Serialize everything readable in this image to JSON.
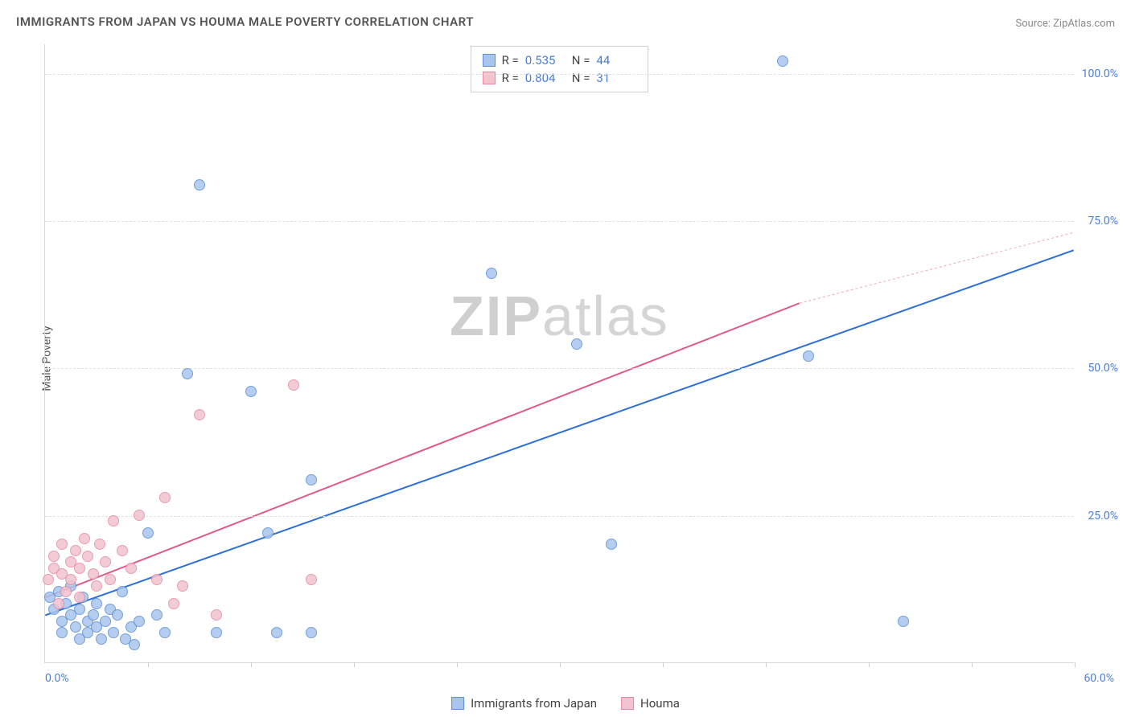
{
  "title": "IMMIGRANTS FROM JAPAN VS HOUMA MALE POVERTY CORRELATION CHART",
  "source": "Source: ZipAtlas.com",
  "watermark_zip": "ZIP",
  "watermark_atlas": "atlas",
  "y_axis_label": "Male Poverty",
  "chart": {
    "type": "scatter",
    "xlim": [
      0,
      60
    ],
    "ylim": [
      0,
      105
    ],
    "x_min_label": "0.0%",
    "x_max_label": "60.0%",
    "y_ticks": [
      25,
      50,
      75,
      100
    ],
    "y_tick_labels": [
      "25.0%",
      "50.0%",
      "75.0%",
      "100.0%"
    ],
    "x_tick_positions": [
      6,
      12,
      18,
      24,
      30,
      36,
      42,
      48,
      54,
      60
    ],
    "grid_color": "#e0e0e0",
    "background_color": "#ffffff",
    "point_radius": 7,
    "series": [
      {
        "name": "Immigrants from Japan",
        "fill_color": "#a9c5ec",
        "stroke_color": "#5b8fd6",
        "R": "0.535",
        "N": "44",
        "trend": {
          "x1": 0,
          "y1": 8,
          "x2": 60,
          "y2": 70,
          "color": "#2e6fd6",
          "width": 2
        },
        "points": [
          [
            0.3,
            11
          ],
          [
            0.5,
            9
          ],
          [
            0.8,
            12
          ],
          [
            1,
            7
          ],
          [
            1,
            5
          ],
          [
            1.2,
            10
          ],
          [
            1.5,
            8
          ],
          [
            1.5,
            13
          ],
          [
            1.8,
            6
          ],
          [
            2,
            9
          ],
          [
            2,
            4
          ],
          [
            2.2,
            11
          ],
          [
            2.5,
            7
          ],
          [
            2.5,
            5
          ],
          [
            2.8,
            8
          ],
          [
            3,
            6
          ],
          [
            3,
            10
          ],
          [
            3.3,
            4
          ],
          [
            3.5,
            7
          ],
          [
            3.8,
            9
          ],
          [
            4,
            5
          ],
          [
            4.2,
            8
          ],
          [
            4.5,
            12
          ],
          [
            4.7,
            4
          ],
          [
            5,
            6
          ],
          [
            5.2,
            3
          ],
          [
            5.5,
            7
          ],
          [
            6,
            22
          ],
          [
            6.5,
            8
          ],
          [
            7,
            5
          ],
          [
            8.3,
            49
          ],
          [
            9,
            81
          ],
          [
            10,
            5
          ],
          [
            12,
            46
          ],
          [
            13,
            22
          ],
          [
            13.5,
            5
          ],
          [
            15.5,
            5
          ],
          [
            15.5,
            31
          ],
          [
            26,
            66
          ],
          [
            31,
            54
          ],
          [
            33,
            20
          ],
          [
            43,
            102
          ],
          [
            50,
            7
          ],
          [
            44.5,
            52
          ]
        ]
      },
      {
        "name": "Houma",
        "fill_color": "#f2c2ce",
        "stroke_color": "#e68aa4",
        "R": "0.804",
        "N": "31",
        "trend_solid": {
          "x1": 0,
          "y1": 11,
          "x2": 44,
          "y2": 61,
          "color": "#e05a86",
          "width": 2
        },
        "trend_dashed": {
          "x1": 44,
          "y1": 61,
          "x2": 60,
          "y2": 73,
          "color": "#f0a5bc",
          "width": 1
        },
        "points": [
          [
            0.2,
            14
          ],
          [
            0.5,
            16
          ],
          [
            0.5,
            18
          ],
          [
            0.8,
            10
          ],
          [
            1,
            20
          ],
          [
            1,
            15
          ],
          [
            1.2,
            12
          ],
          [
            1.5,
            17
          ],
          [
            1.5,
            14
          ],
          [
            1.8,
            19
          ],
          [
            2,
            16
          ],
          [
            2,
            11
          ],
          [
            2.3,
            21
          ],
          [
            2.5,
            18
          ],
          [
            2.8,
            15
          ],
          [
            3,
            13
          ],
          [
            3.2,
            20
          ],
          [
            3.5,
            17
          ],
          [
            3.8,
            14
          ],
          [
            4,
            24
          ],
          [
            4.5,
            19
          ],
          [
            5,
            16
          ],
          [
            5.5,
            25
          ],
          [
            6.5,
            14
          ],
          [
            7,
            28
          ],
          [
            7.5,
            10
          ],
          [
            8,
            13
          ],
          [
            9,
            42
          ],
          [
            10,
            8
          ],
          [
            14.5,
            47
          ],
          [
            15.5,
            14
          ]
        ]
      }
    ]
  },
  "legend_top": {
    "r_label": "R =",
    "n_label": "N ="
  },
  "legend_bottom": {
    "items": [
      "Immigrants from Japan",
      "Houma"
    ]
  }
}
